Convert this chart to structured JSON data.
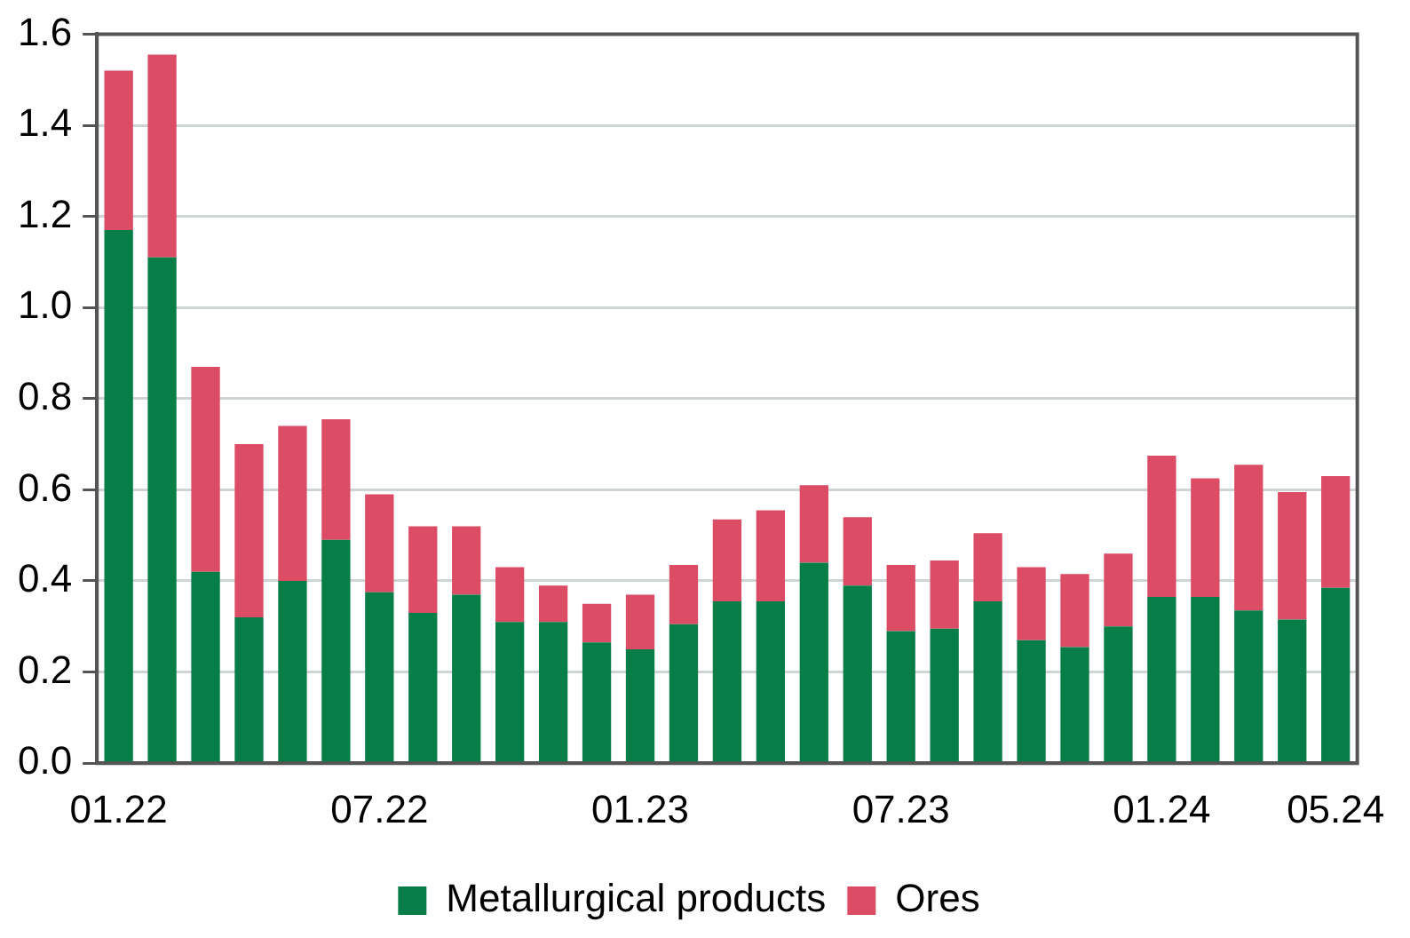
{
  "chart_data": {
    "type": "bar",
    "stacked": true,
    "categories": [
      "01.22",
      null,
      null,
      null,
      null,
      null,
      "07.22",
      null,
      null,
      null,
      null,
      null,
      "01.23",
      null,
      null,
      null,
      null,
      null,
      "07.23",
      null,
      null,
      null,
      null,
      null,
      "01.24",
      null,
      null,
      null,
      "05.24"
    ],
    "series": [
      {
        "name": "Metallurgical products",
        "color": "#077d48",
        "values": [
          1.17,
          1.11,
          0.42,
          0.32,
          0.4,
          0.49,
          0.375,
          0.33,
          0.37,
          0.31,
          0.31,
          0.265,
          0.25,
          0.305,
          0.355,
          0.355,
          0.44,
          0.39,
          0.29,
          0.295,
          0.355,
          0.27,
          0.255,
          0.3,
          0.365,
          0.365,
          0.335,
          0.315,
          0.385
        ]
      },
      {
        "name": "Ores",
        "color": "#dc4c65",
        "values": [
          0.35,
          0.445,
          0.45,
          0.38,
          0.34,
          0.265,
          0.215,
          0.19,
          0.15,
          0.12,
          0.08,
          0.085,
          0.12,
          0.13,
          0.18,
          0.2,
          0.17,
          0.15,
          0.145,
          0.15,
          0.15,
          0.16,
          0.16,
          0.16,
          0.31,
          0.26,
          0.32,
          0.28,
          0.245
        ]
      }
    ],
    "ylim": [
      0,
      1.6
    ],
    "yticks": [
      {
        "value": 0,
        "label": "0.0"
      },
      {
        "value": 0.2,
        "label": "0.2"
      },
      {
        "value": 0.4,
        "label": "0.4"
      },
      {
        "value": 0.6,
        "label": "0.6"
      },
      {
        "value": 0.8,
        "label": "0.8"
      },
      {
        "value": 1,
        "label": "1.0"
      },
      {
        "value": 1.2,
        "label": "1.2"
      },
      {
        "value": 1.4,
        "label": "1.4"
      },
      {
        "value": 1.6,
        "label": "1.6"
      }
    ],
    "grid": "y",
    "legend": "bottom"
  }
}
